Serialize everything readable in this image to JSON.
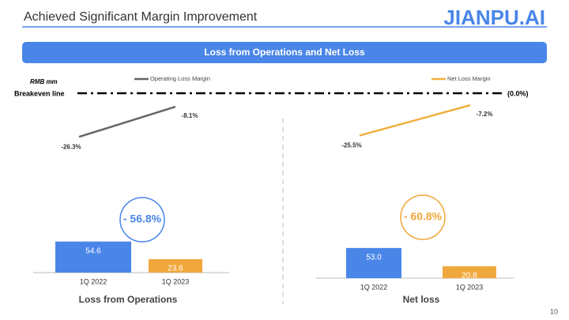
{
  "slide": {
    "title": "Achieved Significant Margin Improvement",
    "logo": "JIANPU.AI",
    "banner": "Loss from Operations and Net Loss",
    "unit": "RMB mm",
    "breakeven_label": "Breakeven line",
    "breakeven": {
      "value": 0,
      "label": "(0.0%)"
    },
    "page_number": "10"
  },
  "chart_data": [
    {
      "type": "bar",
      "categories": [
        "1Q 2022",
        "1Q 2023"
      ],
      "values": [
        54.6,
        23.6
      ],
      "value_labels": [
        "54.6",
        "23.6"
      ],
      "colors": [
        "#4a86e8",
        "#f0a83c"
      ],
      "xlabel": "Loss from Operations",
      "series": [
        {
          "name": "Operating Loss Margin",
          "color": "#666666",
          "values": [
            -26.3,
            -8.1
          ],
          "value_labels": [
            "-26.3%",
            "-8.1%"
          ]
        }
      ],
      "change": {
        "value": -56.8,
        "label": "- 56.8%",
        "color": "#4a86e8"
      }
    },
    {
      "type": "bar",
      "categories": [
        "1Q 2022",
        "1Q 2023"
      ],
      "values": [
        53,
        20.8
      ],
      "value_labels": [
        "53.0",
        "20.8"
      ],
      "colors": [
        "#4a86e8",
        "#f0a83c"
      ],
      "xlabel": "Net loss",
      "series": [
        {
          "name": "Net Loss Margin",
          "color": "#f0b040",
          "values": [
            -25.5,
            -7.2
          ],
          "value_labels": [
            "-25.5%",
            "-7.2%"
          ]
        }
      ],
      "change": {
        "value": -60.8,
        "label": "- 60.8%",
        "color": "#f0a83c"
      }
    }
  ]
}
